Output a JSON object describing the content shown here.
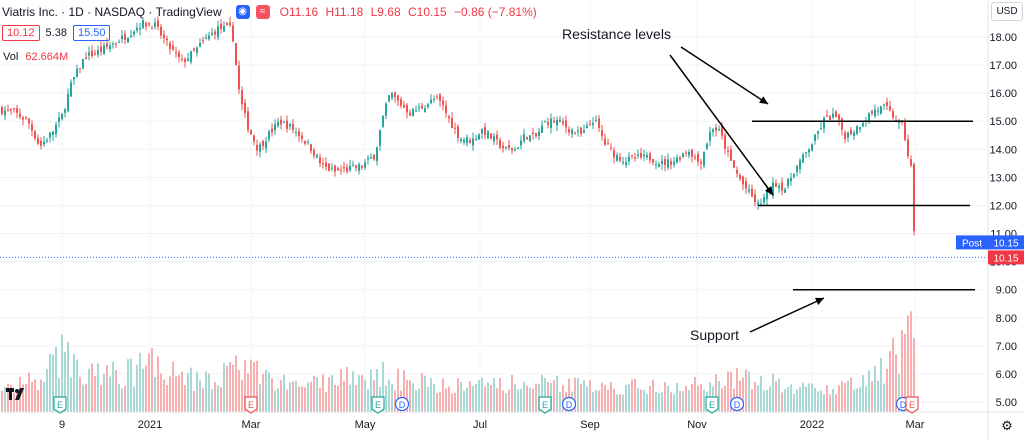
{
  "header": {
    "symbol": "Viatris Inc. · 1D · NASDAQ · TradingView",
    "ohlc": {
      "o": "O11.16",
      "h": "H11.18",
      "l": "L9.68",
      "c": "C10.15",
      "chg": "−0.86 (−7.81%)"
    },
    "bid": "10.12",
    "spread": "5.38",
    "ask": "15.50",
    "volume_label": "Vol",
    "volume_value": "62.664M",
    "currency": "USD"
  },
  "annotations": {
    "resistance": "Resistance levels",
    "support": "Support"
  },
  "price_labels": {
    "post_tag": "Post",
    "post_value": "10.15",
    "last_value": "10.15"
  },
  "colors": {
    "up": "#26a69a",
    "down": "#ef5350",
    "vol_up": "#a8d9d4",
    "vol_down": "#f7b0af",
    "last_price": "#f23645",
    "post_price": "#2962ff"
  },
  "chart_data": {
    "type": "candlestick",
    "y_axis": {
      "ticks": [
        "18.00",
        "17.00",
        "16.00",
        "15.00",
        "14.00",
        "13.00",
        "12.00",
        "11.00",
        "10.00",
        "9.00",
        "8.00",
        "7.00",
        "6.00",
        "5.00"
      ],
      "range": [
        4.6,
        19.2
      ]
    },
    "x_axis": {
      "ticks": [
        "9",
        "2021",
        "Mar",
        "May",
        "Jul",
        "Sep",
        "Nov",
        "2022",
        "Mar"
      ]
    },
    "price_path": [
      [
        0,
        15.4
      ],
      [
        15,
        15.3
      ],
      [
        28,
        15.0
      ],
      [
        40,
        14.1
      ],
      [
        52,
        14.6
      ],
      [
        62,
        15.2
      ],
      [
        72,
        16.4
      ],
      [
        85,
        17.3
      ],
      [
        100,
        17.5
      ],
      [
        115,
        17.8
      ],
      [
        128,
        18.1
      ],
      [
        142,
        18.5
      ],
      [
        155,
        18.4
      ],
      [
        168,
        17.7
      ],
      [
        182,
        17.1
      ],
      [
        195,
        17.5
      ],
      [
        205,
        17.9
      ],
      [
        218,
        18.3
      ],
      [
        232,
        18.3
      ],
      [
        236,
        17.0
      ],
      [
        240,
        15.8
      ],
      [
        248,
        14.8
      ],
      [
        258,
        14.0
      ],
      [
        268,
        14.5
      ],
      [
        280,
        15.0
      ],
      [
        290,
        14.8
      ],
      [
        300,
        14.5
      ],
      [
        312,
        14.0
      ],
      [
        322,
        13.4
      ],
      [
        335,
        13.2
      ],
      [
        348,
        13.3
      ],
      [
        362,
        13.4
      ],
      [
        375,
        13.8
      ],
      [
        382,
        15.0
      ],
      [
        390,
        16.0
      ],
      [
        398,
        15.7
      ],
      [
        410,
        15.3
      ],
      [
        422,
        15.5
      ],
      [
        435,
        15.8
      ],
      [
        442,
        15.6
      ],
      [
        450,
        15.0
      ],
      [
        460,
        14.4
      ],
      [
        472,
        14.3
      ],
      [
        482,
        14.7
      ],
      [
        492,
        14.4
      ],
      [
        505,
        14.0
      ],
      [
        515,
        14.0
      ],
      [
        525,
        14.5
      ],
      [
        535,
        14.4
      ],
      [
        546,
        15.0
      ],
      [
        558,
        15.0
      ],
      [
        570,
        14.7
      ],
      [
        582,
        14.5
      ],
      [
        594,
        15.1
      ],
      [
        605,
        14.2
      ],
      [
        615,
        13.8
      ],
      [
        625,
        13.6
      ],
      [
        638,
        13.7
      ],
      [
        650,
        13.7
      ],
      [
        662,
        13.5
      ],
      [
        675,
        13.6
      ],
      [
        688,
        14.0
      ],
      [
        700,
        13.5
      ],
      [
        712,
        14.8
      ],
      [
        720,
        14.6
      ],
      [
        730,
        13.6
      ],
      [
        742,
        12.8
      ],
      [
        752,
        12.3
      ],
      [
        758,
        12.0
      ],
      [
        765,
        12.3
      ],
      [
        775,
        12.8
      ],
      [
        785,
        12.6
      ],
      [
        795,
        13.3
      ],
      [
        805,
        13.8
      ],
      [
        815,
        14.4
      ],
      [
        825,
        15.1
      ],
      [
        835,
        15.2
      ],
      [
        845,
        14.5
      ],
      [
        855,
        14.7
      ],
      [
        865,
        15.1
      ],
      [
        875,
        15.4
      ],
      [
        885,
        15.5
      ],
      [
        895,
        15.1
      ],
      [
        903,
        14.8
      ],
      [
        908,
        13.8
      ],
      [
        912,
        13.2
      ],
      [
        914,
        11.0
      ],
      [
        916,
        10.15
      ]
    ],
    "volume_profile": [
      [
        0,
        5.8
      ],
      [
        40,
        6.2
      ],
      [
        68,
        7.9
      ],
      [
        75,
        6.8
      ],
      [
        120,
        6.4
      ],
      [
        152,
        7.3
      ],
      [
        200,
        6.0
      ],
      [
        237,
        6.8
      ],
      [
        300,
        5.9
      ],
      [
        378,
        6.5
      ],
      [
        450,
        5.9
      ],
      [
        545,
        6.0
      ],
      [
        600,
        5.8
      ],
      [
        700,
        5.9
      ],
      [
        745,
        6.3
      ],
      [
        800,
        5.8
      ],
      [
        860,
        5.9
      ],
      [
        912,
        8.3
      ],
      [
        916,
        8.3
      ]
    ],
    "resistance_levels": [
      {
        "price": 15.0,
        "x_start": 752,
        "x_end": 973
      },
      {
        "price": 12.0,
        "x_start": 758,
        "x_end": 970
      }
    ],
    "support_level": {
      "price": 9.0,
      "x_start": 793,
      "x_end": 975
    },
    "last_close": 10.15
  }
}
